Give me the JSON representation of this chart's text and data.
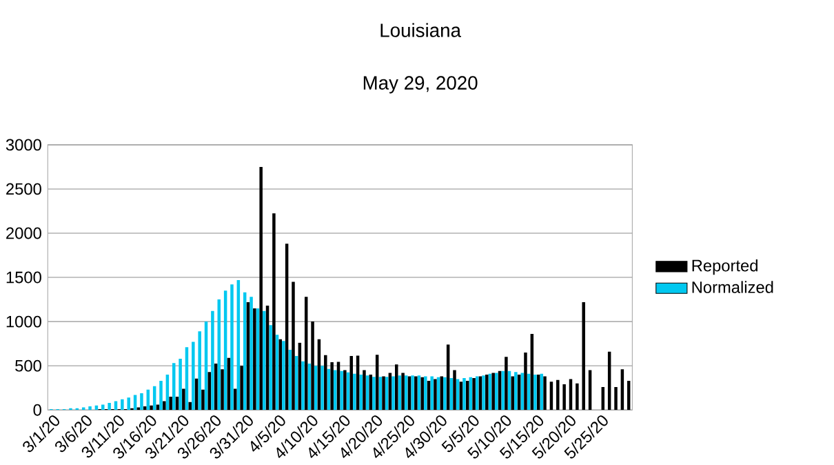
{
  "chart_data": {
    "type": "bar",
    "title": "Louisiana",
    "subtitle": "May 29, 2020",
    "categories": [
      "3/1/20",
      null,
      null,
      null,
      null,
      "3/6/20",
      null,
      null,
      null,
      null,
      "3/11/20",
      null,
      null,
      null,
      null,
      "3/16/20",
      null,
      null,
      null,
      null,
      "3/21/20",
      null,
      null,
      null,
      null,
      "3/26/20",
      null,
      null,
      null,
      null,
      "3/31/20",
      null,
      null,
      null,
      null,
      "4/5/20",
      null,
      null,
      null,
      null,
      "4/10/20",
      null,
      null,
      null,
      null,
      "4/15/20",
      null,
      null,
      null,
      null,
      "4/20/20",
      null,
      null,
      null,
      null,
      "4/25/20",
      null,
      null,
      null,
      null,
      "4/30/20",
      null,
      null,
      null,
      null,
      "5/5/20",
      null,
      null,
      null,
      null,
      "5/10/20",
      null,
      null,
      null,
      null,
      "5/15/20",
      null,
      null,
      null,
      null,
      "5/20/20",
      null,
      null,
      null,
      null,
      "5/25/20",
      null,
      null,
      null,
      null
    ],
    "series": [
      {
        "name": "Reported",
        "color": "#000000",
        "values": [
          0,
          0,
          0,
          0,
          0,
          0,
          0,
          10,
          10,
          10,
          10,
          10,
          20,
          30,
          40,
          50,
          60,
          100,
          150,
          150,
          240,
          90,
          355,
          230,
          430,
          525,
          460,
          590,
          240,
          500,
          1220,
          1150,
          2750,
          1180,
          2225,
          800,
          1880,
          1450,
          760,
          1280,
          1000,
          800,
          620,
          540,
          545,
          450,
          610,
          615,
          450,
          400,
          625,
          380,
          420,
          515,
          420,
          380,
          380,
          370,
          330,
          350,
          380,
          740,
          450,
          320,
          330,
          360,
          380,
          400,
          420,
          440,
          600,
          380,
          400,
          650,
          860,
          400,
          380,
          320,
          340,
          290,
          350,
          300,
          1220,
          450,
          null,
          260,
          660,
          260,
          460,
          330
        ]
      },
      {
        "name": "Normalized",
        "color": "#00c8f0",
        "values": [
          10,
          10,
          10,
          20,
          20,
          30,
          40,
          50,
          60,
          80,
          100,
          120,
          140,
          170,
          190,
          230,
          270,
          330,
          400,
          530,
          580,
          710,
          770,
          890,
          1000,
          1120,
          1250,
          1350,
          1420,
          1470,
          1330,
          1280,
          1150,
          1120,
          960,
          850,
          780,
          680,
          610,
          550,
          525,
          500,
          500,
          465,
          450,
          440,
          425,
          410,
          400,
          390,
          375,
          375,
          375,
          380,
          390,
          390,
          390,
          390,
          380,
          380,
          370,
          370,
          360,
          350,
          360,
          370,
          380,
          390,
          410,
          420,
          440,
          440,
          430,
          420,
          410,
          400,
          410,
          null,
          null,
          null,
          null,
          null,
          null,
          null,
          null,
          null,
          null,
          null,
          null,
          null
        ]
      }
    ],
    "ylim": [
      0,
      3000
    ],
    "yticks": [
      0,
      500,
      1000,
      1500,
      2000,
      2500,
      3000
    ],
    "grid": "y",
    "legend": "right"
  }
}
